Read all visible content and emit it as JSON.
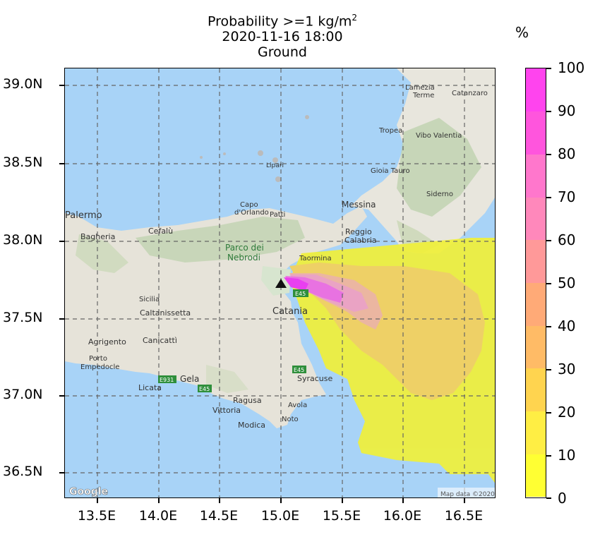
{
  "title": {
    "line1_main": "Probability >=1 kg/m",
    "line1_sup": "2",
    "line2": "2020-11-16 18:00",
    "line3": "Ground"
  },
  "colorbar": {
    "unit": "%",
    "ticks": [
      "100",
      "90",
      "80",
      "70",
      "60",
      "50",
      "40",
      "30",
      "20",
      "10",
      "0"
    ],
    "colors": [
      "#ffff33",
      "#ffee44",
      "#ffd44f",
      "#ffbb66",
      "#ffaa77",
      "#ff9999",
      "#ff88bb",
      "#ff77cc",
      "#ff55dd",
      "#ff44ee"
    ]
  },
  "axes": {
    "lat_labels": [
      "39.0N",
      "38.5N",
      "38.0N",
      "37.5N",
      "37.0N",
      "36.5N"
    ],
    "lon_labels": [
      "13.5E",
      "14.0E",
      "14.5E",
      "15.0E",
      "15.5E",
      "16.0E",
      "16.5E"
    ]
  },
  "map": {
    "places": [
      "Palermo",
      "Bagheria",
      "Cefalù",
      "Parco dei",
      "Nebrodi",
      "Capo",
      "d'Orlando",
      "Patti",
      "Lipari",
      "Messina",
      "Reggio",
      "Calabria",
      "Taormina",
      "Catania",
      "Sicilia",
      "Caltanissetta",
      "Agrigento",
      "Canicattì",
      "Porto",
      "Empedocle",
      "Licata",
      "Gela",
      "Ragusa",
      "Vittoria",
      "Modica",
      "Avola",
      "Noto",
      "Syracuse",
      "Lamezia",
      "Terme",
      "Catanzaro",
      "Tropea",
      "Vibo Valentia",
      "Gioia Tauro",
      "Siderno",
      "E45",
      "E931",
      "E45",
      "E45"
    ],
    "attribution_left": "Google",
    "attribution_right": "Map data ©2020"
  }
}
